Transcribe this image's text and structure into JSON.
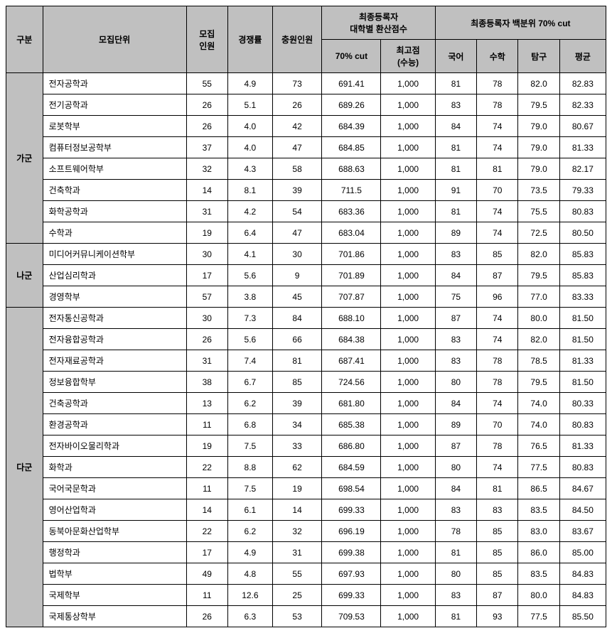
{
  "headers": {
    "group": "구분",
    "dept": "모집단위",
    "recruit": "모집\n인원",
    "competition": "경쟁률",
    "fill": "충원인원",
    "final_score": "최종등록자\n대학별 환산점수",
    "cut70": "70% cut",
    "highest": "최고점\n(수능)",
    "percentile": "최종등록자 백분위 70% cut",
    "kor": "국어",
    "math": "수학",
    "subject": "탐구",
    "avg": "평균"
  },
  "groups": [
    {
      "name": "가군",
      "rows": [
        {
          "dept": "전자공학과",
          "recruit": "55",
          "comp": "4.9",
          "fill": "73",
          "cut70": "691.41",
          "high": "1,000",
          "kor": "81",
          "math": "78",
          "sub": "82.0",
          "avg": "82.83"
        },
        {
          "dept": "전기공학과",
          "recruit": "26",
          "comp": "5.1",
          "fill": "26",
          "cut70": "689.26",
          "high": "1,000",
          "kor": "83",
          "math": "78",
          "sub": "79.5",
          "avg": "82.33"
        },
        {
          "dept": "로봇학부",
          "recruit": "26",
          "comp": "4.0",
          "fill": "42",
          "cut70": "684.39",
          "high": "1,000",
          "kor": "84",
          "math": "74",
          "sub": "79.0",
          "avg": "80.67"
        },
        {
          "dept": "컴퓨터정보공학부",
          "recruit": "37",
          "comp": "4.0",
          "fill": "47",
          "cut70": "684.85",
          "high": "1,000",
          "kor": "81",
          "math": "74",
          "sub": "79.0",
          "avg": "81.33"
        },
        {
          "dept": "소프트웨어학부",
          "recruit": "32",
          "comp": "4.3",
          "fill": "58",
          "cut70": "688.63",
          "high": "1,000",
          "kor": "81",
          "math": "81",
          "sub": "79.0",
          "avg": "82.17"
        },
        {
          "dept": "건축학과",
          "recruit": "14",
          "comp": "8.1",
          "fill": "39",
          "cut70": "711.5",
          "high": "1,000",
          "kor": "91",
          "math": "70",
          "sub": "73.5",
          "avg": "79.33"
        },
        {
          "dept": "화학공학과",
          "recruit": "31",
          "comp": "4.2",
          "fill": "54",
          "cut70": "683.36",
          "high": "1,000",
          "kor": "81",
          "math": "74",
          "sub": "75.5",
          "avg": "80.83"
        },
        {
          "dept": "수학과",
          "recruit": "19",
          "comp": "6.4",
          "fill": "47",
          "cut70": "683.04",
          "high": "1,000",
          "kor": "89",
          "math": "74",
          "sub": "72.5",
          "avg": "80.50"
        }
      ]
    },
    {
      "name": "나군",
      "rows": [
        {
          "dept": "미디어커뮤니케이션학부",
          "recruit": "30",
          "comp": "4.1",
          "fill": "30",
          "cut70": "701.86",
          "high": "1,000",
          "kor": "83",
          "math": "85",
          "sub": "82.0",
          "avg": "85.83"
        },
        {
          "dept": "산업심리학과",
          "recruit": "17",
          "comp": "5.6",
          "fill": "9",
          "cut70": "701.89",
          "high": "1,000",
          "kor": "84",
          "math": "87",
          "sub": "79.5",
          "avg": "85.83"
        },
        {
          "dept": "경영학부",
          "recruit": "57",
          "comp": "3.8",
          "fill": "45",
          "cut70": "707.87",
          "high": "1,000",
          "kor": "75",
          "math": "96",
          "sub": "77.0",
          "avg": "83.33"
        }
      ]
    },
    {
      "name": "다군",
      "rows": [
        {
          "dept": "전자통신공학과",
          "recruit": "30",
          "comp": "7.3",
          "fill": "84",
          "cut70": "688.10",
          "high": "1,000",
          "kor": "87",
          "math": "74",
          "sub": "80.0",
          "avg": "81.50"
        },
        {
          "dept": "전자융합공학과",
          "recruit": "26",
          "comp": "5.6",
          "fill": "66",
          "cut70": "684.38",
          "high": "1,000",
          "kor": "83",
          "math": "74",
          "sub": "82.0",
          "avg": "81.50"
        },
        {
          "dept": "전자재료공학과",
          "recruit": "31",
          "comp": "7.4",
          "fill": "81",
          "cut70": "687.41",
          "high": "1,000",
          "kor": "83",
          "math": "78",
          "sub": "78.5",
          "avg": "81.33"
        },
        {
          "dept": "정보융합학부",
          "recruit": "38",
          "comp": "6.7",
          "fill": "85",
          "cut70": "724.56",
          "high": "1,000",
          "kor": "80",
          "math": "78",
          "sub": "79.5",
          "avg": "81.50"
        },
        {
          "dept": "건축공학과",
          "recruit": "13",
          "comp": "6.2",
          "fill": "39",
          "cut70": "681.80",
          "high": "1,000",
          "kor": "84",
          "math": "74",
          "sub": "74.0",
          "avg": "80.33"
        },
        {
          "dept": "환경공학과",
          "recruit": "11",
          "comp": "6.8",
          "fill": "34",
          "cut70": "685.38",
          "high": "1,000",
          "kor": "89",
          "math": "70",
          "sub": "74.0",
          "avg": "80.83"
        },
        {
          "dept": "전자바이오물리학과",
          "recruit": "19",
          "comp": "7.5",
          "fill": "33",
          "cut70": "686.80",
          "high": "1,000",
          "kor": "87",
          "math": "78",
          "sub": "76.5",
          "avg": "81.33"
        },
        {
          "dept": "화학과",
          "recruit": "22",
          "comp": "8.8",
          "fill": "62",
          "cut70": "684.59",
          "high": "1,000",
          "kor": "80",
          "math": "74",
          "sub": "77.5",
          "avg": "80.83"
        },
        {
          "dept": "국어국문학과",
          "recruit": "11",
          "comp": "7.5",
          "fill": "19",
          "cut70": "698.54",
          "high": "1,000",
          "kor": "84",
          "math": "81",
          "sub": "86.5",
          "avg": "84.67"
        },
        {
          "dept": "영어산업학과",
          "recruit": "14",
          "comp": "6.1",
          "fill": "14",
          "cut70": "699.33",
          "high": "1,000",
          "kor": "83",
          "math": "83",
          "sub": "83.5",
          "avg": "84.50"
        },
        {
          "dept": "동북아문화산업학부",
          "recruit": "22",
          "comp": "6.2",
          "fill": "32",
          "cut70": "696.19",
          "high": "1,000",
          "kor": "78",
          "math": "85",
          "sub": "83.0",
          "avg": "83.67"
        },
        {
          "dept": "행정학과",
          "recruit": "17",
          "comp": "4.9",
          "fill": "31",
          "cut70": "699.38",
          "high": "1,000",
          "kor": "81",
          "math": "85",
          "sub": "86.0",
          "avg": "85.00"
        },
        {
          "dept": "법학부",
          "recruit": "49",
          "comp": "4.8",
          "fill": "55",
          "cut70": "697.93",
          "high": "1,000",
          "kor": "80",
          "math": "85",
          "sub": "83.5",
          "avg": "84.83"
        },
        {
          "dept": "국제학부",
          "recruit": "11",
          "comp": "12.6",
          "fill": "25",
          "cut70": "699.33",
          "high": "1,000",
          "kor": "83",
          "math": "87",
          "sub": "80.0",
          "avg": "84.83"
        },
        {
          "dept": "국제통상학부",
          "recruit": "26",
          "comp": "6.3",
          "fill": "53",
          "cut70": "709.53",
          "high": "1,000",
          "kor": "81",
          "math": "93",
          "sub": "77.5",
          "avg": "85.50"
        }
      ]
    }
  ]
}
